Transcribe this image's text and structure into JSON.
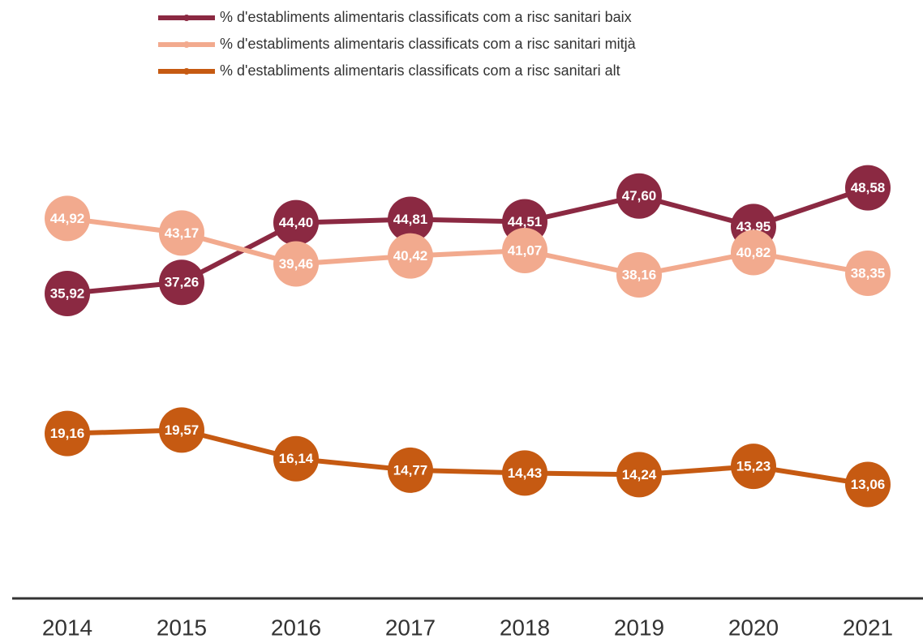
{
  "chart_data": {
    "type": "line",
    "categories": [
      "2014",
      "2015",
      "2016",
      "2017",
      "2018",
      "2019",
      "2020",
      "2021"
    ],
    "series": [
      {
        "name": "% d'establiments alimentaris classificats com a risc sanitari baix",
        "color": "#8b2942",
        "values": [
          35.92,
          37.26,
          44.4,
          44.81,
          44.51,
          47.6,
          43.95,
          48.58
        ],
        "value_labels": [
          "35,92",
          "37,26",
          "44,40",
          "44,81",
          "44,51",
          "47,60",
          "43,95",
          "48,58"
        ]
      },
      {
        "name": "% d'establiments alimentaris classificats com a risc sanitari mitjà",
        "color": "#f2aa8e",
        "values": [
          44.92,
          43.17,
          39.46,
          40.42,
          41.07,
          38.16,
          40.82,
          38.35
        ],
        "value_labels": [
          "44,92",
          "43,17",
          "39,46",
          "40,42",
          "41,07",
          "38,16",
          "40,82",
          "38,35"
        ]
      },
      {
        "name": "% d'establiments alimentaris classificats com a risc sanitari alt",
        "color": "#c65a12",
        "values": [
          19.16,
          19.57,
          16.14,
          14.77,
          14.43,
          14.24,
          15.23,
          13.06
        ],
        "value_labels": [
          "19,16",
          "19,57",
          "16,14",
          "14,77",
          "14,43",
          "14,24",
          "15,23",
          "13,06"
        ]
      }
    ],
    "ylim": [
      0,
      50
    ]
  }
}
